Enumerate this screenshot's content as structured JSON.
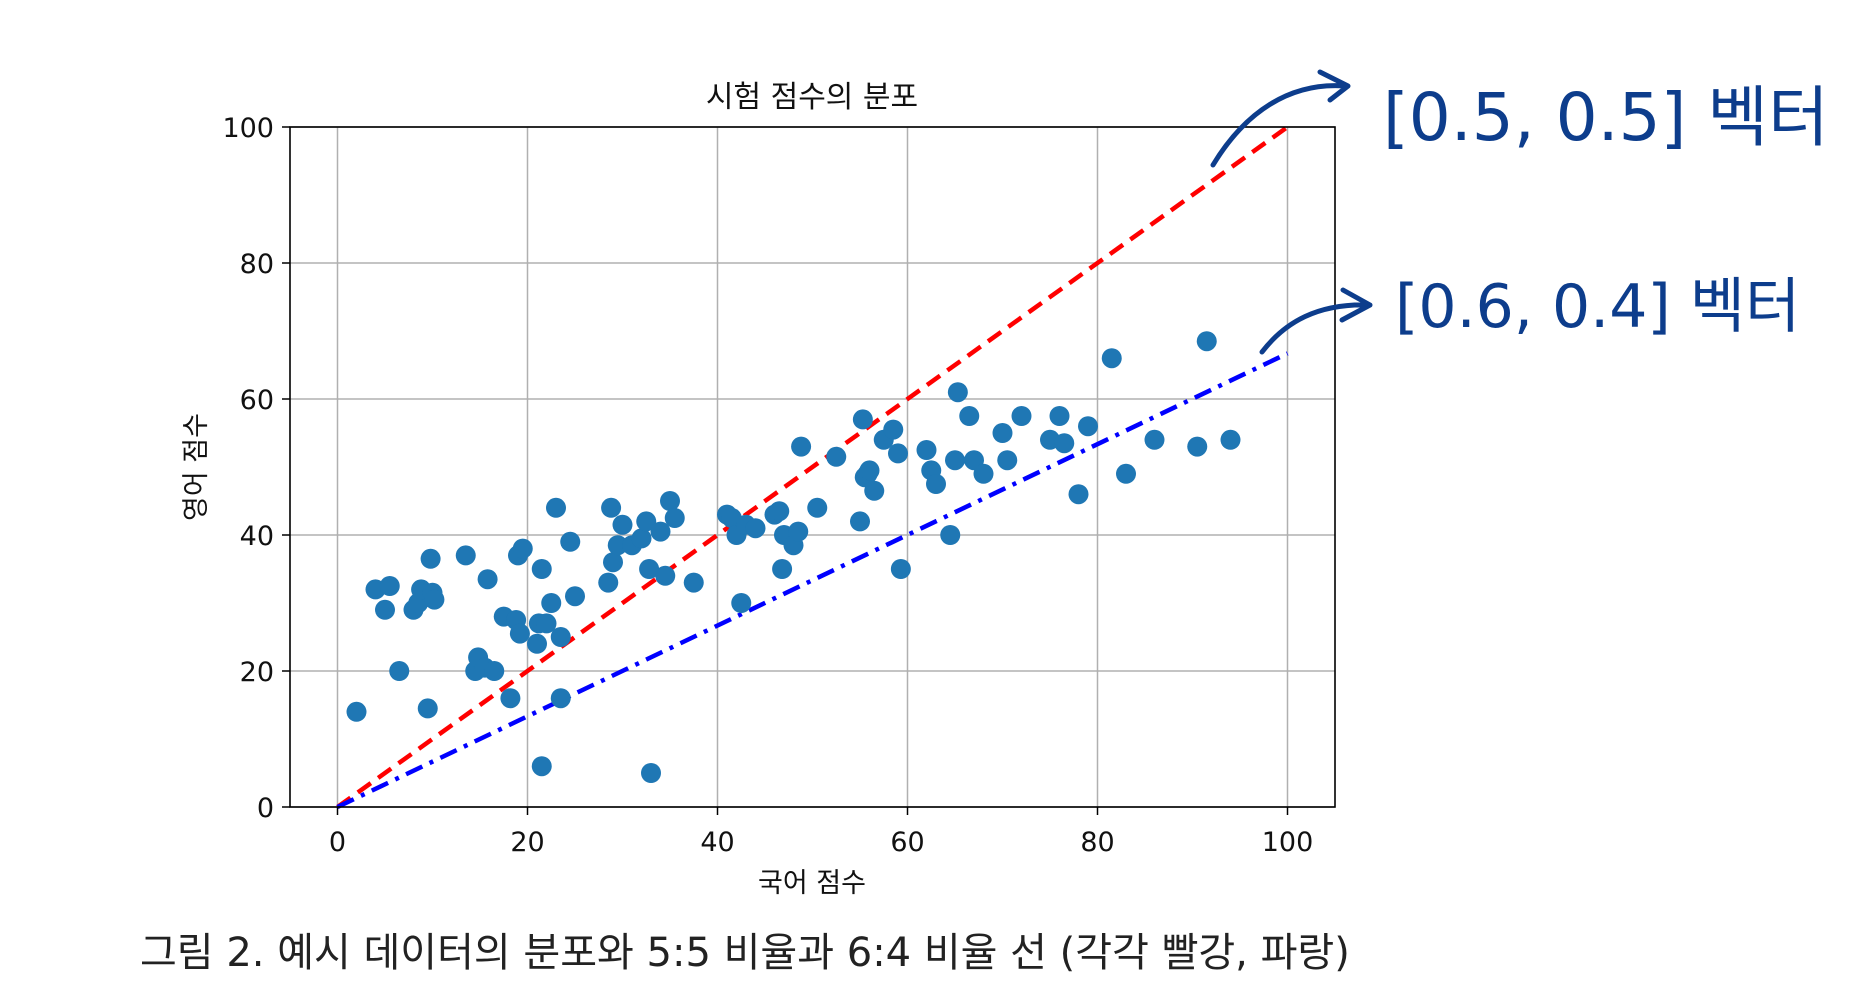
{
  "chart_data": {
    "type": "scatter",
    "title": "시험 점수의 분포",
    "xlabel": "국어 점수",
    "ylabel": "영어 점수",
    "xlim": [
      -5,
      105
    ],
    "ylim": [
      0,
      100
    ],
    "xticks": [
      0,
      20,
      40,
      60,
      80,
      100
    ],
    "yticks": [
      0,
      20,
      40,
      60,
      80,
      100
    ],
    "grid": true,
    "colors": {
      "points": "#1f77b4",
      "line_55": "#ff0000",
      "line_64": "#0000ff",
      "grid": "#b0b0b0",
      "annotation": "#0d3d8c"
    },
    "series": [
      {
        "kind": "scatter",
        "points": [
          [
            2,
            14
          ],
          [
            4,
            32
          ],
          [
            5,
            29
          ],
          [
            5.5,
            32.5
          ],
          [
            6.5,
            20
          ],
          [
            8,
            29
          ],
          [
            8.5,
            30
          ],
          [
            8.8,
            32
          ],
          [
            9.5,
            14.5
          ],
          [
            9.8,
            36.5
          ],
          [
            10,
            31.5
          ],
          [
            10.2,
            30.5
          ],
          [
            13.5,
            37
          ],
          [
            14.5,
            20
          ],
          [
            14.8,
            22
          ],
          [
            15.5,
            20.5
          ],
          [
            15.8,
            33.5
          ],
          [
            16.5,
            20
          ],
          [
            17.5,
            28
          ],
          [
            18.2,
            16
          ],
          [
            18.8,
            27.5
          ],
          [
            19,
            37
          ],
          [
            19.2,
            25.5
          ],
          [
            19.5,
            38
          ],
          [
            21,
            24
          ],
          [
            21.2,
            27
          ],
          [
            21.5,
            35
          ],
          [
            21.5,
            6
          ],
          [
            22,
            27
          ],
          [
            22.5,
            30
          ],
          [
            23,
            44
          ],
          [
            23.5,
            25
          ],
          [
            23.5,
            16
          ],
          [
            24.5,
            39
          ],
          [
            25,
            31
          ],
          [
            28.5,
            33
          ],
          [
            28.8,
            44
          ],
          [
            29,
            36
          ],
          [
            29.5,
            38.5
          ],
          [
            30,
            41.5
          ],
          [
            31,
            38.5
          ],
          [
            32,
            39.5
          ],
          [
            32.5,
            42
          ],
          [
            32.8,
            35
          ],
          [
            33,
            5
          ],
          [
            34,
            40.5
          ],
          [
            34.5,
            34
          ],
          [
            35,
            45
          ],
          [
            35.5,
            42.5
          ],
          [
            37.5,
            33
          ],
          [
            41,
            43
          ],
          [
            41.5,
            42.5
          ],
          [
            42,
            40
          ],
          [
            42.5,
            30
          ],
          [
            43,
            41.5
          ],
          [
            44,
            41
          ],
          [
            46,
            43
          ],
          [
            46.5,
            43.5
          ],
          [
            46.8,
            35
          ],
          [
            47,
            40
          ],
          [
            48,
            38.5
          ],
          [
            48.5,
            40.5
          ],
          [
            48.8,
            53
          ],
          [
            50.5,
            44
          ],
          [
            52.5,
            51.5
          ],
          [
            55,
            42
          ],
          [
            55.3,
            57
          ],
          [
            55.5,
            48.5
          ],
          [
            55.8,
            49
          ],
          [
            56,
            49.5
          ],
          [
            56.5,
            46.5
          ],
          [
            57.5,
            54
          ],
          [
            58.5,
            55.5
          ],
          [
            59,
            52
          ],
          [
            59.3,
            35
          ],
          [
            62,
            52.5
          ],
          [
            62.5,
            49.5
          ],
          [
            63,
            47.5
          ],
          [
            64.5,
            40
          ],
          [
            65,
            51
          ],
          [
            65.3,
            61
          ],
          [
            66.5,
            57.5
          ],
          [
            67,
            51
          ],
          [
            68,
            49
          ],
          [
            70,
            55
          ],
          [
            70.5,
            51
          ],
          [
            72,
            57.5
          ],
          [
            75,
            54
          ],
          [
            76,
            57.5
          ],
          [
            76.5,
            53.5
          ],
          [
            78,
            46
          ],
          [
            79,
            56
          ],
          [
            81.5,
            66
          ],
          [
            83,
            49
          ],
          [
            86,
            54
          ],
          [
            90.5,
            53
          ],
          [
            91.5,
            68.5
          ],
          [
            94,
            54
          ]
        ]
      },
      {
        "kind": "line",
        "name": "[0.5, 0.5] 벡터",
        "style": "dashed",
        "x": [
          0,
          100
        ],
        "y": [
          0,
          100
        ]
      },
      {
        "kind": "line",
        "name": "[0.6, 0.4] 벡터",
        "style": "dashdot",
        "x": [
          0,
          100
        ],
        "y": [
          0,
          66.7
        ]
      }
    ]
  },
  "annotations": {
    "upper": "[0.5, 0.5] 벡터",
    "lower": "[0.6, 0.4] 벡터"
  },
  "caption": "그림 2. 예시 데이터의 분포와 5:5 비율과 6:4 비율 선 (각각 빨강, 파랑)"
}
